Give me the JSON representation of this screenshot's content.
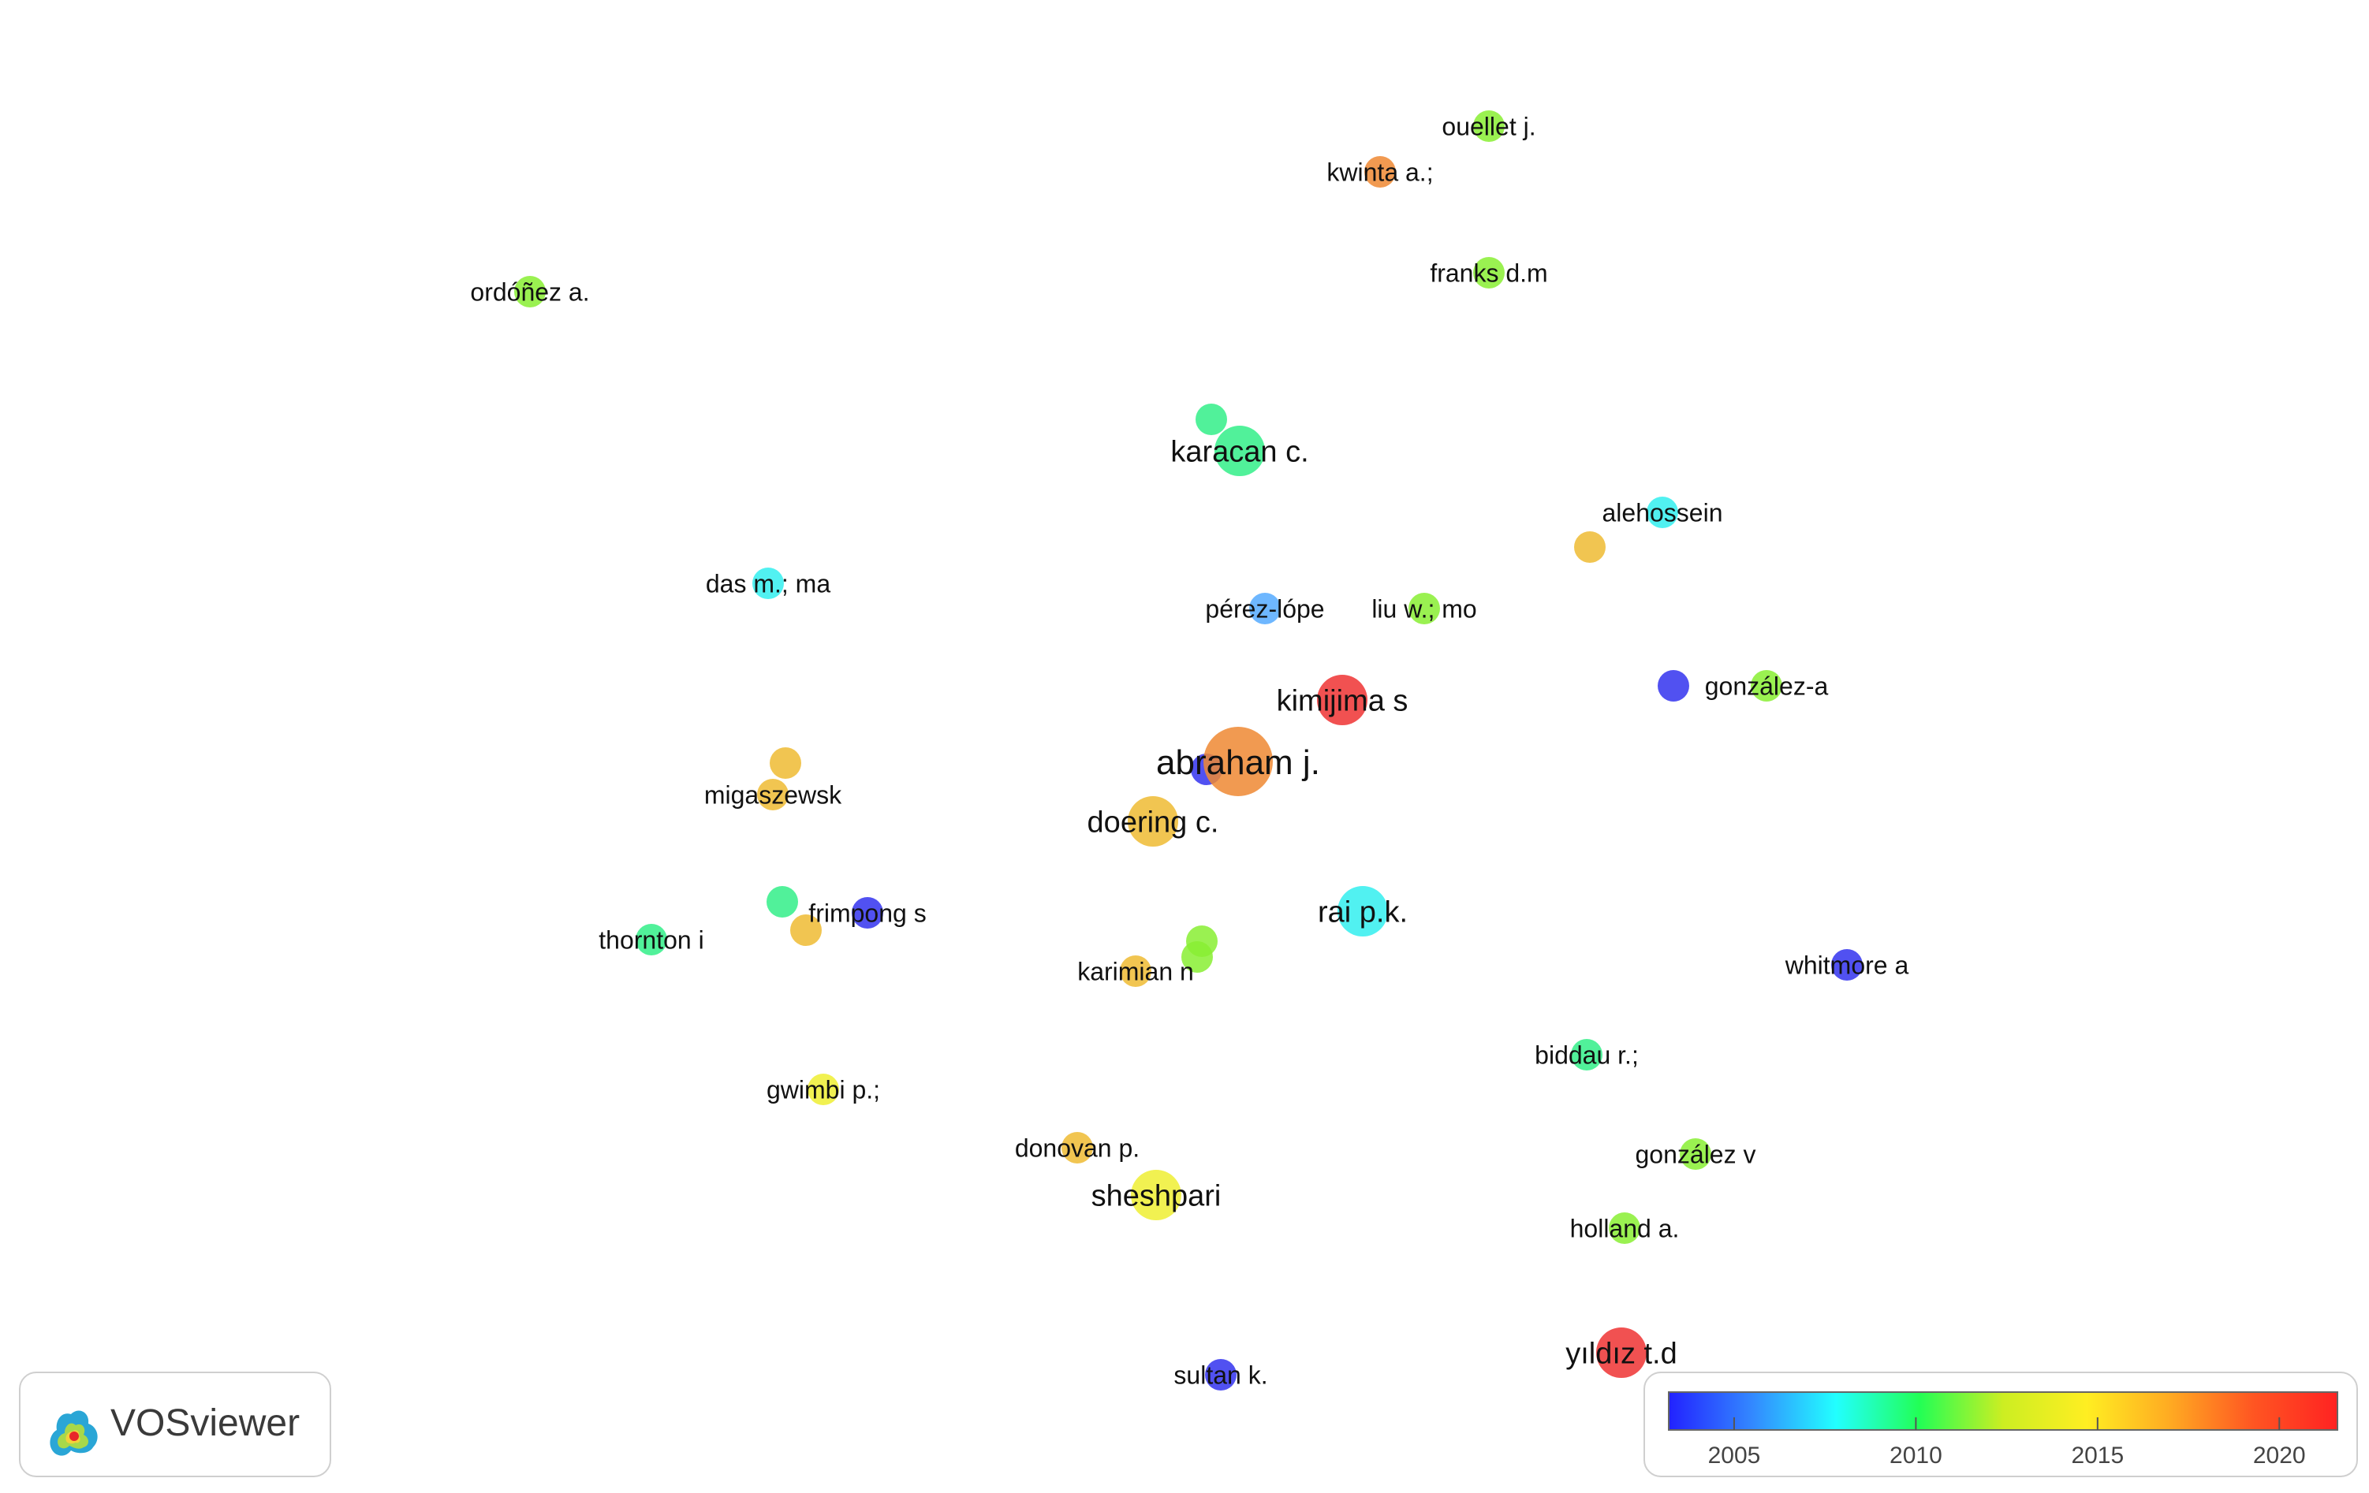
{
  "app": {
    "logo_text": "VOSviewer"
  },
  "colors": {
    "node_palette": [
      "#3333ee",
      "#55aaff",
      "#33eeee",
      "#33ee88",
      "#88ee33",
      "#eeee33",
      "#eebb33",
      "#ee8833",
      "#ee3333"
    ]
  },
  "legend": {
    "min_year": 2003.2,
    "max_year": 2021.6,
    "ticks": [
      {
        "year": 2005,
        "label": "2005"
      },
      {
        "year": 2010,
        "label": "2010"
      },
      {
        "year": 2015,
        "label": "2015"
      },
      {
        "year": 2020,
        "label": "2020"
      }
    ],
    "gradient": [
      "#2222ff",
      "#3388ff",
      "#22ffff",
      "#22ff55",
      "#ccee22",
      "#ffee22",
      "#ffaa22",
      "#ff5522",
      "#ff2222"
    ]
  },
  "nodes": [
    {
      "id": "ouellet",
      "label": "ouellet j.",
      "year": 2013.5,
      "weight": 1
    },
    {
      "id": "kwinta",
      "label": "kwinta a.;",
      "year": 2019,
      "weight": 1
    },
    {
      "id": "franks",
      "label": "franks d.m",
      "year": 2012,
      "weight": 1
    },
    {
      "id": "ordonez",
      "label": "ordóñez a.",
      "year": 2013.5,
      "weight": 1
    },
    {
      "id": "unl1",
      "label": "",
      "year": 2011.5,
      "weight": 1
    },
    {
      "id": "karacan",
      "label": "karacan c.",
      "year": 2010,
      "weight": 3
    },
    {
      "id": "alehossein",
      "label": "alehossein",
      "year": 2009.5,
      "weight": 1
    },
    {
      "id": "unl2",
      "label": "",
      "year": 2017.5,
      "weight": 1
    },
    {
      "id": "das",
      "label": "das m.; ma",
      "year": 2008,
      "weight": 1
    },
    {
      "id": "perez",
      "label": "pérez-lópe",
      "year": 2006,
      "weight": 1
    },
    {
      "id": "liu",
      "label": "liu w.; mo",
      "year": 2012.5,
      "weight": 1
    },
    {
      "id": "kimijima",
      "label": "kimijima s",
      "year": 2020.5,
      "weight": 3
    },
    {
      "id": "unl3",
      "label": "",
      "year": 2005.5,
      "weight": 1
    },
    {
      "id": "gonzalez-a",
      "label": "gonzález-a",
      "year": 2013,
      "weight": 1
    },
    {
      "id": "unl4",
      "label": "",
      "year": 2017.5,
      "weight": 1
    },
    {
      "id": "migaszewsk",
      "label": "migaszewsk",
      "year": 2017,
      "weight": 1
    },
    {
      "id": "unl5",
      "label": "",
      "year": 2004.5,
      "weight": 1
    },
    {
      "id": "abraham",
      "label": "abraham j.",
      "year": 2018,
      "weight": 5
    },
    {
      "id": "doering",
      "label": "doering c.",
      "year": 2016.5,
      "weight": 3
    },
    {
      "id": "unl6",
      "label": "",
      "year": 2011.5,
      "weight": 1
    },
    {
      "id": "frimpong",
      "label": "frimpong s",
      "year": 2005.5,
      "weight": 1
    },
    {
      "id": "unl7",
      "label": "",
      "year": 2016.5,
      "weight": 1
    },
    {
      "id": "thornton",
      "label": "thornton i",
      "year": 2011,
      "weight": 1
    },
    {
      "id": "rai",
      "label": "rai p.k.",
      "year": 2009.5,
      "weight": 3
    },
    {
      "id": "unl8",
      "label": "",
      "year": 2012,
      "weight": 1
    },
    {
      "id": "unl9",
      "label": "",
      "year": 2013.5,
      "weight": 1
    },
    {
      "id": "karimian",
      "label": "karimian n",
      "year": 2017.5,
      "weight": 1
    },
    {
      "id": "whitmore",
      "label": "whitmore a",
      "year": 2005,
      "weight": 1
    },
    {
      "id": "biddau",
      "label": "biddau r.;",
      "year": 2011.5,
      "weight": 1
    },
    {
      "id": "gwimbi",
      "label": "gwimbi p.;",
      "year": 2015.5,
      "weight": 1
    },
    {
      "id": "donovan",
      "label": "donovan p.",
      "year": 2016,
      "weight": 1
    },
    {
      "id": "gonzalez-v",
      "label": "gonzález v",
      "year": 2012,
      "weight": 1
    },
    {
      "id": "sheshpari",
      "label": "sheshpari",
      "year": 2015.5,
      "weight": 3
    },
    {
      "id": "holland",
      "label": "holland a.",
      "year": 2013.5,
      "weight": 1
    },
    {
      "id": "yildiz",
      "label": "yıldız t.d",
      "year": 2020.5,
      "weight": 3
    },
    {
      "id": "sultan",
      "label": "sultan k.",
      "year": 2005.5,
      "weight": 1
    }
  ]
}
